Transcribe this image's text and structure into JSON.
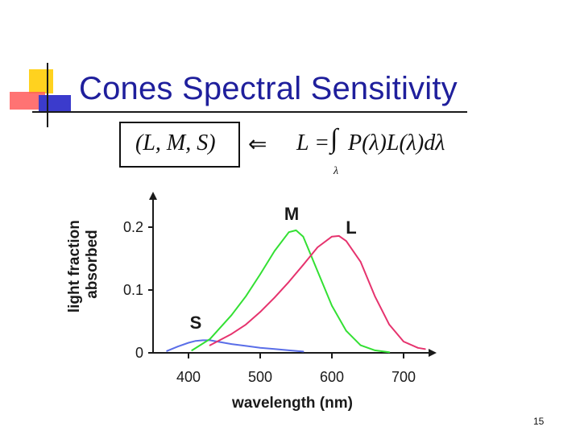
{
  "slide": {
    "title": "Cones Spectral Sensitivity",
    "page_number": "15"
  },
  "formula": {
    "boxed": "(L, M, S)",
    "arrow": "⇐",
    "lhs": "L =",
    "integral": "∫",
    "body": "P(λ)L(λ)dλ",
    "subscript": "λ"
  },
  "colors": {
    "title": "#1f1f9c",
    "S": "#5a6ee8",
    "M": "#33e033",
    "L": "#e6336e",
    "axis": "#1a1a1a"
  },
  "chart_data": {
    "type": "line",
    "title": "",
    "xlabel": "wavelength (nm)",
    "ylabel": "light fraction absorbed",
    "xlim": [
      350,
      730
    ],
    "ylim": [
      0,
      0.25
    ],
    "xticks": [
      400,
      500,
      600,
      700
    ],
    "yticks": [
      0,
      0.1,
      0.2
    ],
    "ytick_labels": [
      "0",
      "0.1",
      "0.2"
    ],
    "series": [
      {
        "name": "S",
        "x": [
          370,
          385,
          400,
          410,
          420,
          430,
          440,
          460,
          480,
          500,
          520,
          540,
          560
        ],
        "y": [
          0.003,
          0.01,
          0.016,
          0.019,
          0.02,
          0.02,
          0.018,
          0.014,
          0.011,
          0.008,
          0.006,
          0.004,
          0.002
        ]
      },
      {
        "name": "M",
        "x": [
          405,
          430,
          460,
          480,
          500,
          520,
          540,
          550,
          560,
          580,
          600,
          620,
          640,
          660,
          680
        ],
        "y": [
          0.004,
          0.022,
          0.06,
          0.09,
          0.125,
          0.162,
          0.192,
          0.195,
          0.185,
          0.13,
          0.075,
          0.035,
          0.012,
          0.004,
          0.001
        ]
      },
      {
        "name": "L",
        "x": [
          430,
          460,
          480,
          500,
          520,
          540,
          560,
          580,
          600,
          610,
          620,
          640,
          660,
          680,
          700,
          720,
          730
        ],
        "y": [
          0.012,
          0.03,
          0.045,
          0.065,
          0.088,
          0.113,
          0.14,
          0.168,
          0.185,
          0.186,
          0.178,
          0.145,
          0.09,
          0.045,
          0.018,
          0.008,
          0.006
        ]
      }
    ]
  }
}
